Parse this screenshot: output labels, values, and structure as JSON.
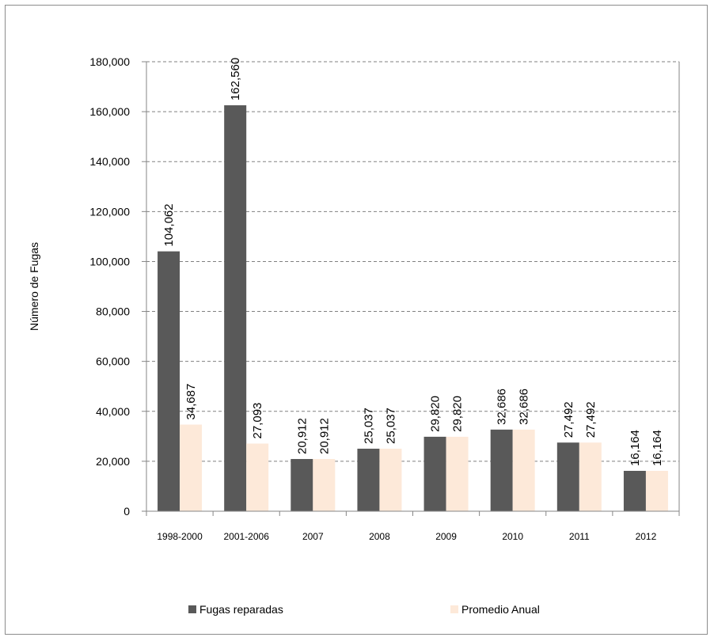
{
  "chart_data": {
    "type": "bar",
    "title": "",
    "xlabel": "",
    "ylabel": "Número de Fugas",
    "ylim": [
      0,
      180000
    ],
    "yticks": [
      0,
      20000,
      40000,
      60000,
      80000,
      100000,
      120000,
      140000,
      160000,
      180000
    ],
    "ytick_labels": [
      "0",
      "20,000",
      "40,000",
      "60,000",
      "80,000",
      "100,000",
      "120,000",
      "140,000",
      "160,000",
      "180,000"
    ],
    "grid": "horizontal dashed",
    "legend_position": "bottom",
    "categories": [
      "1998-2000",
      "2001-2006",
      "2007",
      "2008",
      "2009",
      "2010",
      "2011",
      "2012"
    ],
    "series": [
      {
        "name": "Fugas reparadas",
        "color": "#595959",
        "values": [
          104062,
          162560,
          20912,
          25037,
          29820,
          32686,
          27492,
          16164
        ],
        "labels": [
          "104,062",
          "162,560",
          "20,912",
          "25,037",
          "29,820",
          "32,686",
          "27,492",
          "16,164"
        ]
      },
      {
        "name": "Promedio Anual",
        "color": "#fde9d9",
        "values": [
          34687,
          27093,
          20912,
          25037,
          29820,
          32686,
          27492,
          16164
        ],
        "labels": [
          "34,687",
          "27,093",
          "20,912",
          "25,037",
          "29,820",
          "32,686",
          "27,492",
          "16,164"
        ]
      }
    ]
  }
}
